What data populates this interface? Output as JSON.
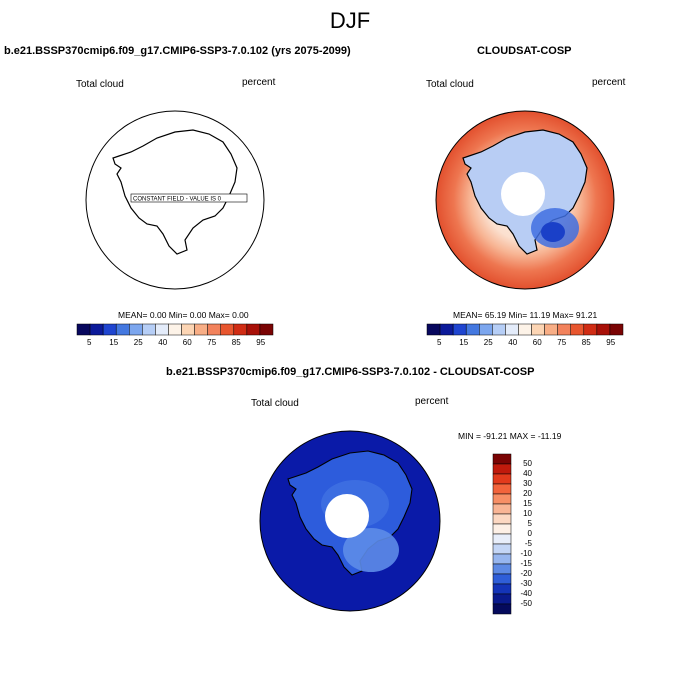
{
  "suptitle": "DJF",
  "panels": [
    {
      "title": "b.e21.BSSP370cmip6.f09_g17.CMIP6-SSP3-7.0.102 (yrs 2075-2099)",
      "left_label": "Total cloud",
      "right_label": "percent",
      "stats": "MEAN=   0.00  Min=   0.00  Max=   0.00",
      "annotation": "CONSTANT FIELD - VALUE IS  0"
    },
    {
      "title": "CLOUDSAT-COSP",
      "left_label": "Total cloud",
      "right_label": "percent",
      "stats": "MEAN=  65.19  Min=  11.19  Max=  91.21"
    },
    {
      "title": "b.e21.BSSP370cmip6.f09_g17.CMIP6-SSP3-7.0.102 - CLOUDSAT-COSP",
      "left_label": "Total cloud",
      "right_label": "percent",
      "minmax": "MIN = -91.21  MAX = -11.19"
    }
  ],
  "colorbar_abs": {
    "labels": [
      "5",
      "15",
      "25",
      "40",
      "60",
      "75",
      "85",
      "95"
    ],
    "colors": [
      "#08085e",
      "#0c1a9a",
      "#1f45d0",
      "#4478e0",
      "#7ca6ee",
      "#b6cef6",
      "#e4ecfa",
      "#fdf3e8",
      "#fcd5b4",
      "#f8ae86",
      "#f2825c",
      "#e8562f",
      "#d02c14",
      "#a81008",
      "#7a0404"
    ]
  },
  "colorbar_diff": {
    "labels": [
      "50",
      "40",
      "30",
      "20",
      "15",
      "10",
      "5",
      "0",
      "-5",
      "-10",
      "-15",
      "-20",
      "-30",
      "-40",
      "-50"
    ],
    "colors": [
      "#7a0404",
      "#c01a0c",
      "#e23a1c",
      "#f2643c",
      "#f78f66",
      "#f9b595",
      "#fcd8c2",
      "#fdf0e6",
      "#e8eefa",
      "#c4d6f6",
      "#97b6ef",
      "#5e8ae4",
      "#2f5ed8",
      "#1434b8",
      "#0a1a8c",
      "#050a5c"
    ]
  },
  "map_fills": {
    "ocean_blue": "#0a1aa8",
    "abs_outer": "#e8563a",
    "abs_mid": "#f6a888",
    "abs_inner": "#fbe3d3",
    "land_blue": "#5a8ae8",
    "land_dark": "#1e48d2"
  }
}
